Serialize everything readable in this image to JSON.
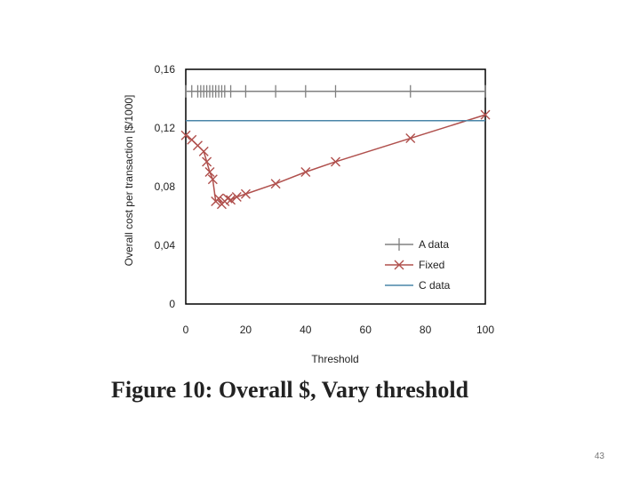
{
  "caption": "Figure 10: Overall $, Vary threshold",
  "slide_number": "43",
  "chart_data": {
    "type": "line",
    "title": "",
    "xlabel": "Threshold",
    "ylabel": "Overall cost per transaction [$/1000]",
    "xlim": [
      0,
      100
    ],
    "ylim": [
      0,
      0.16
    ],
    "x_ticks": [
      0,
      20,
      40,
      60,
      80,
      100
    ],
    "x_tick_labels": [
      "0",
      "20",
      "40",
      "60",
      "80",
      "100"
    ],
    "y_ticks": [
      0,
      0.04,
      0.08,
      0.12,
      0.16
    ],
    "y_tick_labels": [
      "0",
      "0,04",
      "0,08",
      "0,12",
      "0,16"
    ],
    "grid": false,
    "legend_position": "bottom-right",
    "series": [
      {
        "name": "A data",
        "color": "#808080",
        "marker": "plus",
        "x": [
          0,
          2,
          4,
          5,
          6,
          7,
          8,
          9,
          10,
          11,
          12,
          13,
          15,
          20,
          30,
          40,
          50,
          75,
          100
        ],
        "y": [
          0.145,
          0.145,
          0.145,
          0.145,
          0.145,
          0.145,
          0.145,
          0.145,
          0.145,
          0.145,
          0.145,
          0.145,
          0.145,
          0.145,
          0.145,
          0.145,
          0.145,
          0.145,
          0.145
        ]
      },
      {
        "name": "Fixed",
        "color": "#b0504d",
        "marker": "x",
        "x": [
          0,
          2,
          4,
          6,
          7,
          8,
          9,
          10,
          11,
          12,
          13,
          14,
          15,
          17,
          20,
          30,
          40,
          50,
          75,
          100
        ],
        "y": [
          0.115,
          0.112,
          0.108,
          0.104,
          0.097,
          0.09,
          0.085,
          0.07,
          0.072,
          0.068,
          0.07,
          0.072,
          0.071,
          0.073,
          0.075,
          0.082,
          0.09,
          0.097,
          0.113,
          0.129
        ]
      },
      {
        "name": "C data",
        "color": "#4a86a8",
        "marker": "none",
        "x": [
          0,
          100
        ],
        "y": [
          0.125,
          0.125
        ]
      }
    ]
  }
}
